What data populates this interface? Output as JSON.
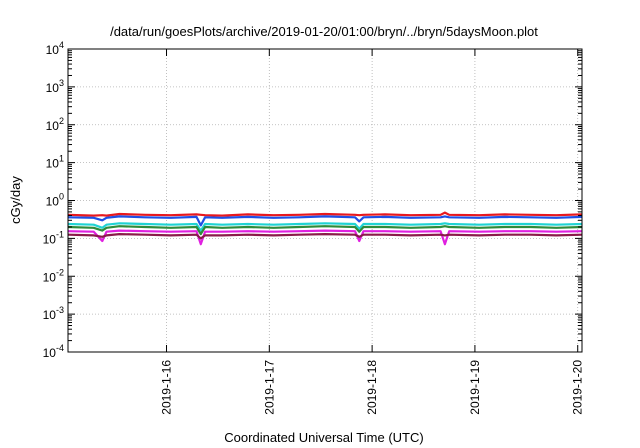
{
  "chart_data": {
    "type": "line",
    "title": "/data/run/goesPlots/archive/2019-01-20/01:00/bryn/../bryn/5daysMoon.plot",
    "xlabel": "Coordinated Universal Time (UTC)",
    "ylabel": "cGy/day",
    "yscale": "log",
    "ylim": [
      0.0001,
      10000
    ],
    "xlim": [
      "2019-01-15T01:00",
      "2019-01-20T01:00"
    ],
    "grid": true,
    "legend": "none",
    "y_ticks": [
      {
        "base": "10",
        "exp": "-4",
        "value": 0.0001
      },
      {
        "base": "10",
        "exp": "-3",
        "value": 0.001
      },
      {
        "base": "10",
        "exp": "-2",
        "value": 0.01
      },
      {
        "base": "10",
        "exp": "-1",
        "value": 0.1
      },
      {
        "base": "10",
        "exp": "0",
        "value": 1
      },
      {
        "base": "10",
        "exp": "1",
        "value": 10
      },
      {
        "base": "10",
        "exp": "2",
        "value": 100
      },
      {
        "base": "10",
        "exp": "3",
        "value": 1000
      },
      {
        "base": "10",
        "exp": "4",
        "value": 10000
      }
    ],
    "x_ticks": [
      {
        "label": "2019-1-16",
        "value": "2019-01-16T00:00"
      },
      {
        "label": "2019-1-17",
        "value": "2019-01-17T00:00"
      },
      {
        "label": "2019-1-18",
        "value": "2019-01-18T00:00"
      },
      {
        "label": "2019-1-19",
        "value": "2019-01-19T00:00"
      },
      {
        "label": "2019-1-20",
        "value": "2019-01-20T00:00"
      }
    ],
    "x": [
      "2019-01-15T01:00",
      "2019-01-15T07:00",
      "2019-01-15T09:00",
      "2019-01-15T10:00",
      "2019-01-15T13:00",
      "2019-01-15T19:00",
      "2019-01-16T01:00",
      "2019-01-16T07:00",
      "2019-01-16T08:00",
      "2019-01-16T09:00",
      "2019-01-16T13:00",
      "2019-01-16T19:00",
      "2019-01-17T01:00",
      "2019-01-17T07:00",
      "2019-01-17T13:00",
      "2019-01-17T20:00",
      "2019-01-17T21:00",
      "2019-01-17T22:00",
      "2019-01-18T03:00",
      "2019-01-18T09:00",
      "2019-01-18T16:00",
      "2019-01-18T17:00",
      "2019-01-18T18:00",
      "2019-01-19T01:00",
      "2019-01-19T07:00",
      "2019-01-19T13:00",
      "2019-01-19T19:00",
      "2019-01-20T01:00"
    ],
    "series": [
      {
        "color": "#e8181e",
        "values": [
          0.42,
          0.4,
          0.41,
          0.4,
          0.44,
          0.42,
          0.41,
          0.43,
          0.42,
          0.41,
          0.4,
          0.43,
          0.41,
          0.42,
          0.44,
          0.42,
          0.41,
          0.42,
          0.43,
          0.41,
          0.42,
          0.48,
          0.42,
          0.41,
          0.43,
          0.42,
          0.41,
          0.43
        ]
      },
      {
        "color": "#1f4fe6",
        "values": [
          0.36,
          0.35,
          0.3,
          0.35,
          0.38,
          0.36,
          0.35,
          0.37,
          0.22,
          0.36,
          0.35,
          0.37,
          0.35,
          0.36,
          0.38,
          0.36,
          0.28,
          0.36,
          0.37,
          0.35,
          0.36,
          0.38,
          0.36,
          0.35,
          0.37,
          0.36,
          0.35,
          0.37
        ]
      },
      {
        "color": "#1fd3d3",
        "values": [
          0.24,
          0.23,
          0.19,
          0.23,
          0.25,
          0.24,
          0.23,
          0.24,
          0.16,
          0.24,
          0.23,
          0.24,
          0.23,
          0.24,
          0.25,
          0.24,
          0.18,
          0.24,
          0.24,
          0.23,
          0.24,
          0.25,
          0.24,
          0.23,
          0.24,
          0.24,
          0.23,
          0.24
        ]
      },
      {
        "color": "#2e8b3a",
        "values": [
          0.2,
          0.19,
          0.16,
          0.19,
          0.21,
          0.2,
          0.19,
          0.2,
          0.13,
          0.2,
          0.19,
          0.2,
          0.19,
          0.2,
          0.21,
          0.2,
          0.15,
          0.2,
          0.2,
          0.19,
          0.2,
          0.21,
          0.2,
          0.19,
          0.2,
          0.2,
          0.19,
          0.2
        ]
      },
      {
        "color": "#e020e0",
        "values": [
          0.155,
          0.15,
          0.085,
          0.15,
          0.16,
          0.155,
          0.15,
          0.155,
          0.07,
          0.15,
          0.15,
          0.155,
          0.15,
          0.155,
          0.16,
          0.155,
          0.085,
          0.155,
          0.155,
          0.15,
          0.155,
          0.07,
          0.155,
          0.15,
          0.155,
          0.155,
          0.15,
          0.155
        ]
      },
      {
        "color": "#8a1a4a",
        "values": [
          0.125,
          0.12,
          0.11,
          0.12,
          0.13,
          0.125,
          0.12,
          0.125,
          0.1,
          0.12,
          0.12,
          0.125,
          0.12,
          0.125,
          0.13,
          0.125,
          0.11,
          0.125,
          0.125,
          0.12,
          0.125,
          0.12,
          0.125,
          0.12,
          0.125,
          0.125,
          0.12,
          0.125
        ]
      }
    ]
  }
}
